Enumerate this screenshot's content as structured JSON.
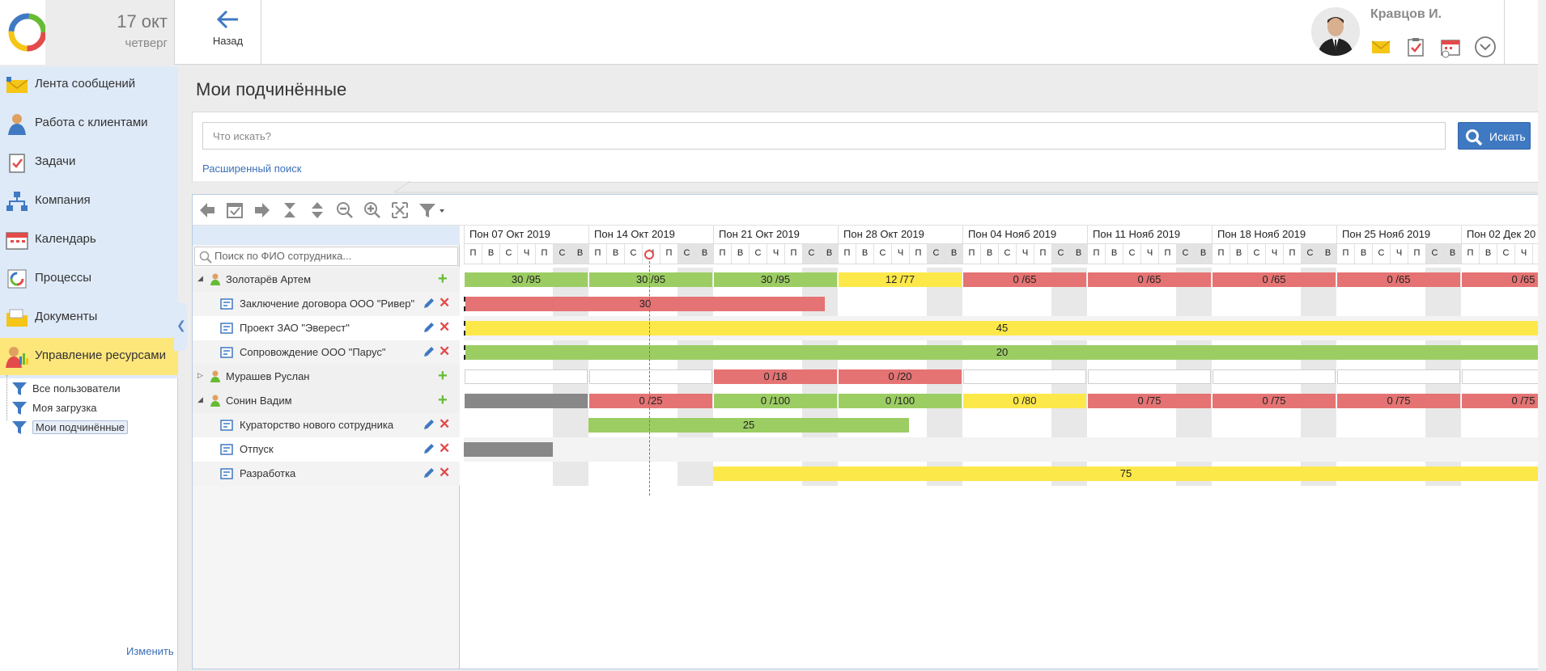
{
  "header": {
    "date_day": "17 окт",
    "date_weekday": "четверг",
    "back_label": "Назад",
    "user_name": "Кравцов И."
  },
  "sidebar": {
    "items": [
      {
        "label": "Лента сообщений",
        "icon": "mail-feed-icon"
      },
      {
        "label": "Работа с клиентами",
        "icon": "client-icon"
      },
      {
        "label": "Задачи",
        "icon": "tasks-icon"
      },
      {
        "label": "Компания",
        "icon": "company-icon"
      },
      {
        "label": "Календарь",
        "icon": "calendar-icon"
      },
      {
        "label": "Процессы",
        "icon": "process-icon"
      },
      {
        "label": "Документы",
        "icon": "documents-icon"
      },
      {
        "label": "Управление ресурсами",
        "icon": "resources-icon"
      }
    ],
    "sub_items": [
      {
        "label": "Все пользователи"
      },
      {
        "label": "Моя загрузка"
      },
      {
        "label": "Мои подчинённые"
      }
    ],
    "edit_link": "Изменить"
  },
  "main": {
    "title": "Мои подчинённые",
    "search_placeholder": "Что искать?",
    "search_button": "Искать",
    "advanced_search": "Расширенный поиск"
  },
  "gantt": {
    "employee_search_placeholder": "Поиск по ФИО сотрудника...",
    "weeks": [
      "Пон 07 Окт 2019",
      "Пон 14 Окт 2019",
      "Пон 21 Окт 2019",
      "Пон 28 Окт 2019",
      "Пон 04 Нояб 2019",
      "Пон 11 Нояб 2019",
      "Пон 18 Нояб 2019",
      "Пон 25 Нояб 2019",
      "Пон 02 Дек 20"
    ],
    "day_letters": [
      "П",
      "В",
      "С",
      "Ч",
      "П",
      "С",
      "В"
    ],
    "rows": [
      {
        "type": "person",
        "name": "Золотарёв Артем",
        "expanded": true
      },
      {
        "type": "task",
        "name": "Заключение договора ООО \"Ривер\""
      },
      {
        "type": "task",
        "name": "Проект ЗАО \"Эверест\""
      },
      {
        "type": "task",
        "name": "Сопровождение ООО \"Парус\""
      },
      {
        "type": "person",
        "name": "Мурашев Руслан",
        "expanded": false
      },
      {
        "type": "person",
        "name": "Сонин Вадим",
        "expanded": true
      },
      {
        "type": "task",
        "name": "Кураторство нового сотрудника"
      },
      {
        "type": "task",
        "name": "Отпуск"
      },
      {
        "type": "task",
        "name": "Разработка"
      }
    ],
    "bars": {
      "zolotarev_weeks": [
        {
          "label": "30 /95",
          "color": "green"
        },
        {
          "label": "30 /95",
          "color": "green"
        },
        {
          "label": "30 /95",
          "color": "green"
        },
        {
          "label": "12 /77",
          "color": "yellow"
        },
        {
          "label": "0 /65",
          "color": "red"
        },
        {
          "label": "0 /65",
          "color": "red"
        },
        {
          "label": "0 /65",
          "color": "red"
        },
        {
          "label": "0 /65",
          "color": "red"
        },
        {
          "label": "0 /65",
          "color": "red"
        }
      ],
      "task_river": "30",
      "task_everest": "45",
      "task_parus": "20",
      "murashev_weeks": [
        "",
        "",
        "0 /18",
        "0 /20",
        "",
        "",
        "",
        "",
        ""
      ],
      "sonin_weeks": [
        {
          "label": "",
          "color": "gray"
        },
        {
          "label": "0 /25",
          "color": "red"
        },
        {
          "label": "0 /100",
          "color": "green"
        },
        {
          "label": "0 /100",
          "color": "green"
        },
        {
          "label": "0 /80",
          "color": "yellow"
        },
        {
          "label": "0 /75",
          "color": "red"
        },
        {
          "label": "0 /75",
          "color": "red"
        },
        {
          "label": "0 /75",
          "color": "red"
        },
        {
          "label": "0 /75",
          "color": "red"
        }
      ],
      "task_curator": "25",
      "task_vacation": "",
      "task_dev": "75"
    }
  }
}
